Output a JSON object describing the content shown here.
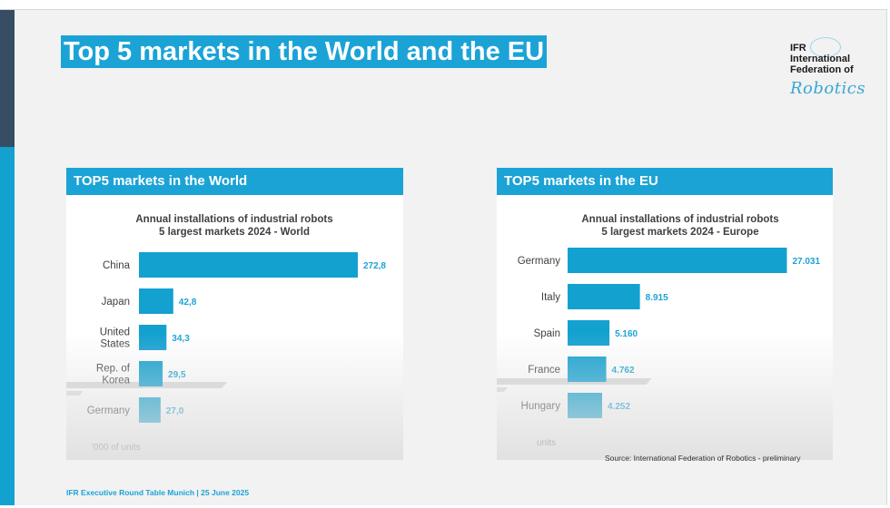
{
  "slide": {
    "title": "Top 5 markets in the World and the EU",
    "footer": "IFR Executive Round Table Munich | 25 June 2025",
    "source": "Source: International Federation of Robotics - preliminary"
  },
  "logo": {
    "line1": "IFR",
    "line2": "International",
    "line3": "Federation of",
    "script": "Robotics"
  },
  "colors": {
    "accent": "#1ba3d6",
    "bar": "#13a1d0",
    "dark_sidebar": "#364d63",
    "label": "#404040"
  },
  "panels": {
    "world": {
      "header": "TOP5 markets in the World"
    },
    "eu": {
      "header": "TOP5 markets in the EU"
    }
  },
  "chart_data": [
    {
      "type": "bar",
      "orientation": "horizontal",
      "title": "Annual installations of industrial robots\n5 largest markets 2024 - World",
      "categories": [
        "China",
        "Japan",
        "United\nStates",
        "Rep. of\nKorea",
        "Germany"
      ],
      "values": [
        272.8,
        42.8,
        34.3,
        29.5,
        27.0
      ],
      "value_labels": [
        "272,8",
        "42,8",
        "34,3",
        "29,5",
        "27,0"
      ],
      "unit_note": "'000 of units",
      "xlim": [
        0,
        300
      ]
    },
    {
      "type": "bar",
      "orientation": "horizontal",
      "title": "Annual installations of industrial robots\n5 largest markets 2024 - Europe",
      "categories": [
        "Germany",
        "Italy",
        "Spain",
        "France",
        "Hungary"
      ],
      "values": [
        27031,
        8915,
        5160,
        4762,
        4252
      ],
      "value_labels": [
        "27.031",
        "8.915",
        "5.160",
        "4.762",
        "4.252"
      ],
      "unit_note": "units",
      "xlim": [
        0,
        30000
      ]
    }
  ]
}
